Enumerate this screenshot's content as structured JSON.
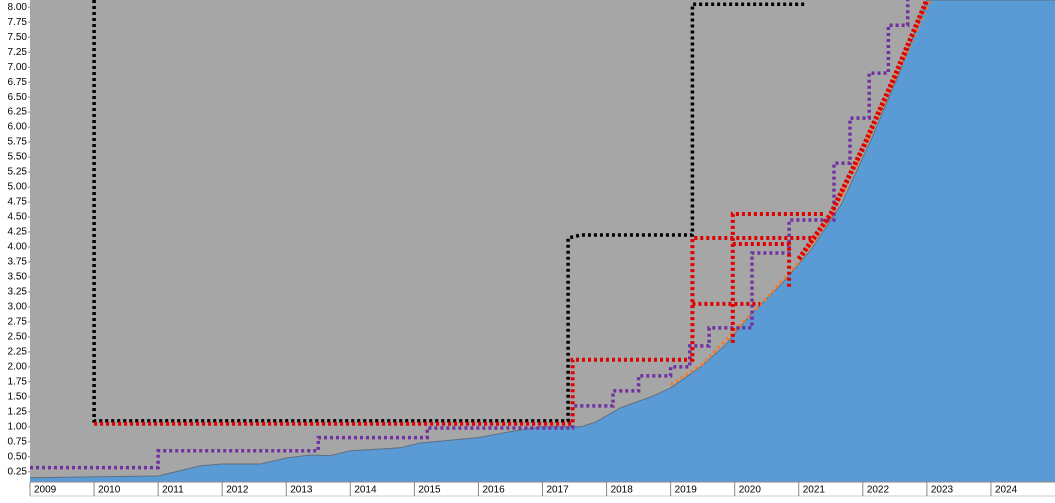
{
  "chart_data": {
    "type": "line",
    "plot_background": "#a6a6a6",
    "xlim": [
      2009,
      2025
    ],
    "ylim": [
      0.08,
      8.12
    ],
    "xticks": [
      2009,
      2010,
      2011,
      2012,
      2013,
      2014,
      2015,
      2016,
      2017,
      2018,
      2019,
      2020,
      2021,
      2022,
      2023,
      2024
    ],
    "yticks": [
      {
        "value": 0.25,
        "label": "0.25"
      },
      {
        "value": 0.5,
        "label": "0.50"
      },
      {
        "value": 0.75,
        "label": "0.75"
      },
      {
        "value": 1,
        "label": "1.00"
      },
      {
        "value": 1.25,
        "label": "1.25"
      },
      {
        "value": 1.5,
        "label": "1.50"
      },
      {
        "value": 1.75,
        "label": "1.75"
      },
      {
        "value": 2,
        "label": "2.00"
      },
      {
        "value": 2.25,
        "label": "2.25"
      },
      {
        "value": 2.5,
        "label": "2.50"
      },
      {
        "value": 2.75,
        "label": "2.75"
      },
      {
        "value": 3,
        "label": "3.00"
      },
      {
        "value": 3.25,
        "label": "3.25"
      },
      {
        "value": 3.5,
        "label": "3.50"
      },
      {
        "value": 3.75,
        "label": "3.75"
      },
      {
        "value": 4,
        "label": "4.00"
      },
      {
        "value": 4.25,
        "label": "4.25"
      },
      {
        "value": 4.5,
        "label": "4.50"
      },
      {
        "value": 4.75,
        "label": "4.75"
      },
      {
        "value": 5,
        "label": "5.00"
      },
      {
        "value": 5.25,
        "label": "5.25"
      },
      {
        "value": 5.5,
        "label": "5.50"
      },
      {
        "value": 5.75,
        "label": "5.75"
      },
      {
        "value": 6,
        "label": "6.00"
      },
      {
        "value": 6.25,
        "label": "6.25"
      },
      {
        "value": 6.5,
        "label": "6.50"
      },
      {
        "value": 6.75,
        "label": "6.75"
      },
      {
        "value": 7,
        "label": "7.00"
      },
      {
        "value": 7.25,
        "label": "7.25"
      },
      {
        "value": 7.5,
        "label": "7.50"
      },
      {
        "value": 7.75,
        "label": "7.75"
      },
      {
        "value": 8,
        "label": "8.00"
      }
    ],
    "series": [
      {
        "area": true,
        "color": "#5b9bd5",
        "edge": "#5f6f80",
        "x": [
          2009,
          2011,
          2011.66,
          2012,
          2012.6,
          2013,
          2013.375,
          2013.69,
          2014,
          2014.78,
          2015.09,
          2016,
          2016.5,
          2017,
          2017.6,
          2017.83,
          2018.22,
          2018.69,
          2019,
          2019.47,
          2019.86,
          2020.25,
          2020.72,
          2021.19,
          2021.66,
          2022.125,
          2022.59,
          2023,
          2025
        ],
        "values": [
          0.15,
          0.18,
          0.35,
          0.38,
          0.38,
          0.48,
          0.53,
          0.52,
          0.6,
          0.65,
          0.73,
          0.82,
          0.92,
          1.0,
          1.0,
          1.08,
          1.32,
          1.5,
          1.65,
          2.0,
          2.37,
          2.87,
          3.37,
          3.95,
          4.7,
          5.78,
          6.95,
          8.12,
          8.12
        ]
      },
      {
        "color": "#ed7d31",
        "width": 3,
        "dash": "3 3",
        "x": [
          2019,
          2019.5,
          2020,
          2020.5,
          2021,
          2021.5,
          2022,
          2022.5,
          2023.05
        ],
        "values": [
          1.7,
          2.05,
          2.6,
          3.15,
          3.75,
          4.5,
          5.6,
          6.8,
          8.12
        ]
      },
      {
        "color": "#000000",
        "width": 3.5,
        "dash": "3 3",
        "x": [
          2010,
          2010,
          2017.4,
          2017.4,
          2017.6,
          2019.34,
          2019.34,
          2021.1
        ],
        "values": [
          8.12,
          1.1,
          1.1,
          4.15,
          4.2,
          4.2,
          8.05,
          8.05
        ]
      },
      {
        "color": "#7030a0",
        "width": 3.5,
        "dash": "3 3",
        "x": [
          2009,
          2011,
          2011,
          2013.5,
          2013.5,
          2015.2,
          2015.2,
          2017.47,
          2017.47,
          2018.1,
          2018.1,
          2018.5,
          2018.5,
          2019,
          2019,
          2019.3,
          2019.3,
          2019.6,
          2019.6,
          2020.27,
          2020.27,
          2020.85,
          2020.85,
          2021.55,
          2021.55,
          2021.8,
          2021.8,
          2022.1,
          2022.1,
          2022.4,
          2022.4,
          2022.7,
          2022.7
        ],
        "values": [
          0.32,
          0.32,
          0.6,
          0.6,
          0.82,
          0.82,
          0.98,
          0.98,
          1.35,
          1.35,
          1.6,
          1.6,
          1.85,
          1.85,
          2.0,
          2.0,
          2.35,
          2.35,
          2.65,
          2.65,
          3.9,
          3.9,
          4.45,
          4.45,
          5.4,
          5.4,
          6.15,
          6.15,
          6.9,
          6.9,
          7.7,
          7.7,
          8.12
        ]
      },
      {
        "color": "#e00000",
        "width": 4,
        "dash": "3 3",
        "x": [
          2010,
          2017.47,
          2017.47,
          2019.34,
          2019.34,
          2021.2
        ],
        "values": [
          1.05,
          1.05,
          2.12,
          2.12,
          4.15,
          4.15
        ]
      },
      {
        "color": "#e00000",
        "width": 4,
        "dash": "3 3",
        "x": [
          2019.34,
          2020.4
        ],
        "values": [
          3.05,
          3.05
        ]
      },
      {
        "color": "#e00000",
        "width": 4,
        "dash": "3 3",
        "x": [
          2019.97,
          2019.97,
          2021.4
        ],
        "values": [
          2.4,
          4.55,
          4.55
        ]
      },
      {
        "color": "#e00000",
        "width": 4,
        "dash": "3 3",
        "x": [
          2019.97,
          2020.85,
          2020.85
        ],
        "values": [
          4.05,
          4.05,
          3.3
        ]
      },
      {
        "color": "#e00000",
        "width": 5,
        "dash": "3 2",
        "x": [
          2021,
          2021.5,
          2022,
          2022.5,
          2023
        ],
        "values": [
          3.8,
          4.55,
          5.65,
          6.85,
          8.12
        ]
      }
    ]
  }
}
